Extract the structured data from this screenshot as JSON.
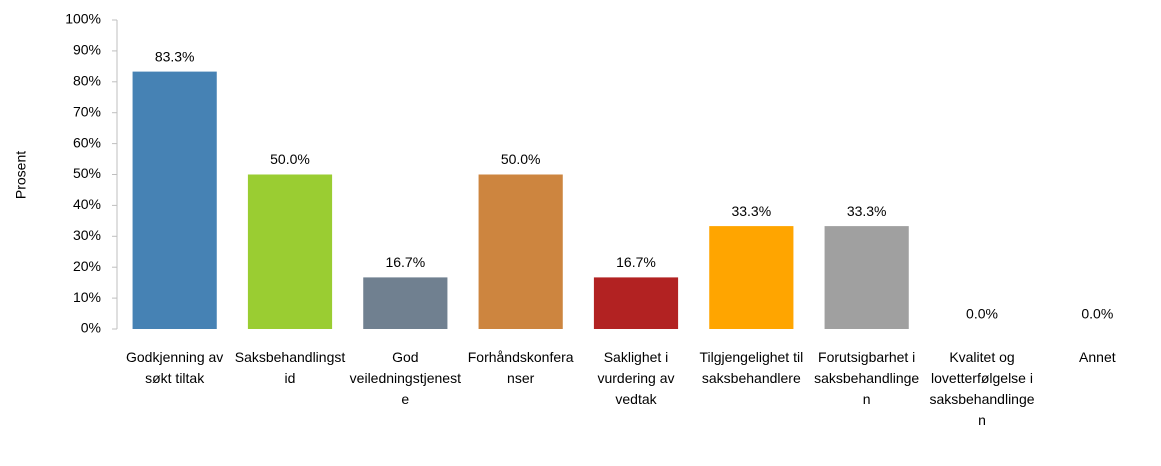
{
  "chart_data": {
    "type": "bar",
    "y_label": "Prosent",
    "categories": [
      "Godkjenning av søkt tiltak",
      "Saksbehandlingstid",
      "God veiledningstjeneste",
      "Forhåndskonferanser",
      "Saklighet i vurdering av vedtak",
      "Tilgjengelighet til saksbehandlere",
      "Forutsigbarhet i saksbehandlingen",
      "Kvalitet og lovetterfølgelse i saksbehandlingen",
      "Annet"
    ],
    "values": [
      83.3,
      50.0,
      16.7,
      50.0,
      16.7,
      33.3,
      33.3,
      0.0,
      0.0
    ],
    "value_labels": [
      "83.3%",
      "50.0%",
      "16.7%",
      "50.0%",
      "16.7%",
      "33.3%",
      "33.3%",
      "0.0%",
      "0.0%"
    ],
    "colors": [
      "#4682b4",
      "#9acd32",
      "#708090",
      "#cd853f",
      "#b22222",
      "#ffa500",
      "#a0a0a0",
      "#8fbc8f",
      "#4169e1"
    ],
    "ylim": [
      0,
      100
    ],
    "yticks": [
      {
        "value": 0,
        "label": "0%"
      },
      {
        "value": 10,
        "label": "10%"
      },
      {
        "value": 20,
        "label": "20%"
      },
      {
        "value": 30,
        "label": "30%"
      },
      {
        "value": 40,
        "label": "40%"
      },
      {
        "value": 50,
        "label": "50%"
      },
      {
        "value": 60,
        "label": "60%"
      },
      {
        "value": 70,
        "label": "70%"
      },
      {
        "value": 80,
        "label": "80%"
      },
      {
        "value": 90,
        "label": "90%"
      },
      {
        "value": 100,
        "label": "100%"
      }
    ],
    "grid": false
  }
}
